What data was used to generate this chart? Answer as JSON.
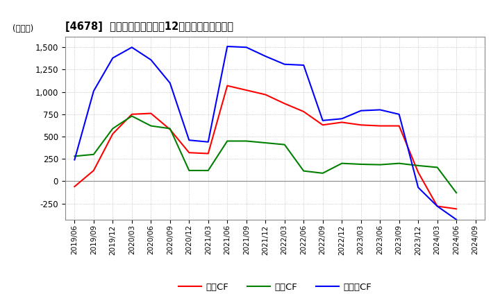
{
  "title": "[4678]  キャッシュフローの12か月移動合計の推移",
  "ylabel": "(百万円)",
  "ylim": [
    -430,
    1620
  ],
  "yticks": [
    -250,
    0,
    250,
    500,
    750,
    1000,
    1250,
    1500
  ],
  "background_color": "#ffffff",
  "plot_background": "#ffffff",
  "grid_color": "#aaaaaa",
  "dates": [
    "2019/06",
    "2019/09",
    "2019/12",
    "2020/03",
    "2020/06",
    "2020/09",
    "2020/12",
    "2021/03",
    "2021/06",
    "2021/09",
    "2021/12",
    "2022/03",
    "2022/06",
    "2022/09",
    "2022/12",
    "2023/03",
    "2023/06",
    "2023/09",
    "2023/12",
    "2024/03",
    "2024/06",
    "2024/09"
  ],
  "eigyo_cf": [
    -60,
    120,
    530,
    750,
    760,
    580,
    320,
    310,
    1070,
    1020,
    970,
    870,
    780,
    630,
    660,
    630,
    620,
    620,
    100,
    -280,
    -310,
    null
  ],
  "toshi_cf": [
    280,
    300,
    590,
    730,
    620,
    590,
    120,
    120,
    450,
    450,
    430,
    410,
    115,
    90,
    200,
    190,
    185,
    200,
    175,
    155,
    -130,
    null
  ],
  "free_cf": [
    240,
    1010,
    1380,
    1500,
    1360,
    1100,
    460,
    440,
    1510,
    1500,
    1400,
    1310,
    1300,
    680,
    700,
    790,
    800,
    750,
    -70,
    -280,
    -430,
    null
  ],
  "eigyo_color": "#ff0000",
  "toshi_color": "#008000",
  "free_color": "#0000ff",
  "line_width": 1.5,
  "legend_labels": [
    "営業CF",
    "投資CF",
    "フリーCF"
  ]
}
